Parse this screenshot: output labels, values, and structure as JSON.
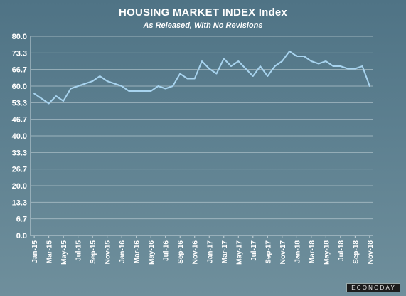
{
  "chart_data": {
    "type": "line",
    "title": "HOUSING MARKET INDEX Index",
    "subtitle": "As Released, With No Revisions",
    "xlabel": "",
    "ylabel": "",
    "ylim": [
      0,
      80
    ],
    "y_ticks": [
      "0.0",
      "6.7",
      "13.3",
      "20.0",
      "26.7",
      "33.3",
      "40.0",
      "46.7",
      "53.3",
      "60.0",
      "66.7",
      "73.3",
      "80.0"
    ],
    "x_tick_labels": [
      "Jan-15",
      "Mar-15",
      "May-15",
      "Jul-15",
      "Sep-15",
      "Nov-15",
      "Jan-16",
      "Mar-16",
      "May-16",
      "Jul-16",
      "Sep-16",
      "Nov-16",
      "Jan-17",
      "Mar-17",
      "May-17",
      "Jul-17",
      "Sep-17",
      "Nov-17",
      "Jan-18",
      "Mar-18",
      "May-18",
      "Jul-18",
      "Sep-18",
      "Nov-18"
    ],
    "grid": true,
    "legend": "none",
    "line_color": "#a8d4ef",
    "series": [
      {
        "values": [
          57,
          55,
          53,
          56,
          54,
          59,
          60,
          61,
          62,
          64,
          62,
          61,
          60,
          58,
          58,
          58,
          58,
          60,
          59,
          60,
          65,
          63,
          63,
          70,
          67,
          65,
          71,
          68,
          70,
          67,
          64,
          68,
          64,
          68,
          70,
          74,
          72,
          72,
          70,
          69,
          70,
          68,
          68,
          67,
          67,
          68,
          60
        ]
      }
    ]
  },
  "brand": "ECONODAY"
}
